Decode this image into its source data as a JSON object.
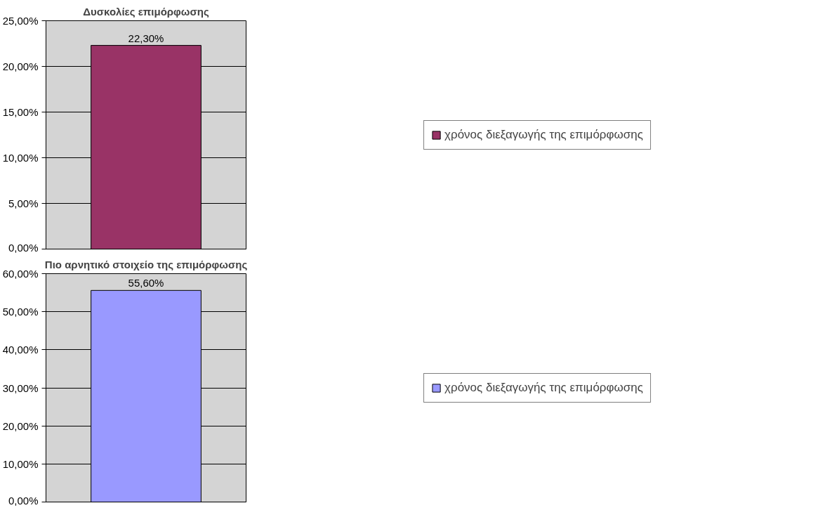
{
  "chart_data": [
    {
      "type": "bar",
      "title": "Δυσκολίες επιμόρφωσης",
      "categories": [
        null
      ],
      "series": [
        {
          "name": "χρόνος διεξαγωγής της επιμόρφωσης",
          "color": "#993366",
          "values": [
            22.3
          ],
          "value_labels": [
            "22,30%"
          ]
        }
      ],
      "ylim": [
        0,
        25
      ],
      "yticks": [
        {
          "value": 0,
          "label": "0,00%"
        },
        {
          "value": 5,
          "label": "5,00%"
        },
        {
          "value": 10,
          "label": "10,00%"
        },
        {
          "value": 15,
          "label": "15,00%"
        },
        {
          "value": 20,
          "label": "20,00%"
        },
        {
          "value": 25,
          "label": "25,00%"
        }
      ],
      "grid": "y",
      "legend": "right"
    },
    {
      "type": "bar",
      "title": "Πιο αρνητικό στοιχείο της επιμόρφωσης",
      "categories": [
        null
      ],
      "series": [
        {
          "name": "χρόνος διεξαγωγής της επιμόρφωσης",
          "color": "#9999ff",
          "values": [
            55.6
          ],
          "value_labels": [
            "55,60%"
          ]
        }
      ],
      "ylim": [
        0,
        60
      ],
      "yticks": [
        {
          "value": 0,
          "label": "0,00%"
        },
        {
          "value": 10,
          "label": "10,00%"
        },
        {
          "value": 20,
          "label": "20,00%"
        },
        {
          "value": 30,
          "label": "30,00%"
        },
        {
          "value": 40,
          "label": "40,00%"
        },
        {
          "value": 50,
          "label": "50,00%"
        },
        {
          "value": 60,
          "label": "60,00%"
        }
      ],
      "grid": "y",
      "legend": "right"
    }
  ]
}
